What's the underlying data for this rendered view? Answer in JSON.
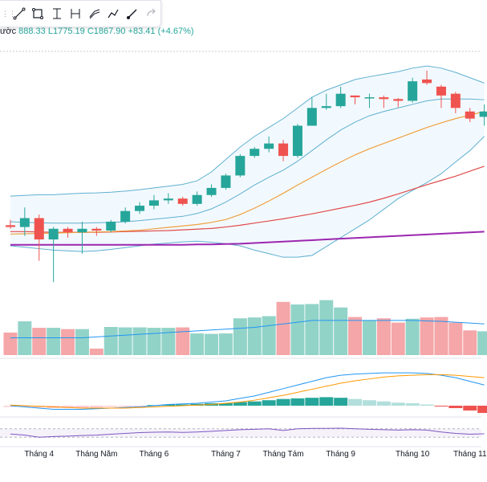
{
  "toolbar": {
    "tools": [
      {
        "name": "trend-line-icon"
      },
      {
        "name": "rectangle-icon"
      },
      {
        "name": "measure-icon"
      },
      {
        "name": "xabcd-pattern-icon"
      },
      {
        "name": "parallel-channel-icon"
      },
      {
        "name": "path-icon"
      },
      {
        "name": "brush-icon"
      },
      {
        "name": "redo-icon"
      }
    ]
  },
  "legend": {
    "cut": "ườc",
    "high": "888.33",
    "low": "L1775.19",
    "close": "C1867.90",
    "change": "+83.41 (+4.67%)"
  },
  "colors": {
    "up": "#26a69a",
    "down": "#ef5350",
    "up_vol": "#92d3c8",
    "down_vol": "#f5a6a8",
    "bb": "#5fb0d0",
    "ma_orange": "#f0a040",
    "ma_red": "#e04b4b",
    "ma_purple": "#9c27b0"
  },
  "chart_data": {
    "type": "candlestick",
    "x_labels": [
      "Tháng 4",
      "Tháng Năm",
      "Tháng 6",
      "Tháng 7",
      "Tháng Tám",
      "Tháng 9",
      "Tháng 10",
      "Tháng 11"
    ],
    "x_label_index": [
      2,
      6,
      10,
      15,
      19,
      23,
      28,
      32
    ],
    "candles": [
      [
        1780,
        1775,
        1795,
        1770
      ],
      [
        1775,
        1800,
        1830,
        1750
      ],
      [
        1800,
        1740,
        1810,
        1680
      ],
      [
        1740,
        1770,
        1775,
        1620
      ],
      [
        1770,
        1760,
        1775,
        1745
      ],
      [
        1760,
        1770,
        1790,
        1700
      ],
      [
        1770,
        1765,
        1775,
        1750
      ],
      [
        1765,
        1790,
        1795,
        1760
      ],
      [
        1790,
        1820,
        1830,
        1785
      ],
      [
        1820,
        1835,
        1845,
        1812
      ],
      [
        1835,
        1850,
        1865,
        1825
      ],
      [
        1850,
        1855,
        1870,
        1840
      ],
      [
        1855,
        1840,
        1860,
        1835
      ],
      [
        1840,
        1865,
        1875,
        1835
      ],
      [
        1865,
        1885,
        1895,
        1860
      ],
      [
        1885,
        1920,
        1925,
        1880
      ],
      [
        1920,
        1975,
        1980,
        1915
      ],
      [
        1975,
        1995,
        2000,
        1970
      ],
      [
        1995,
        2010,
        2030,
        1985
      ],
      [
        2010,
        1975,
        2020,
        1960
      ],
      [
        1975,
        2060,
        2065,
        1970
      ],
      [
        2060,
        2110,
        2140,
        2060
      ],
      [
        2110,
        2115,
        2150,
        2105
      ],
      [
        2115,
        2150,
        2170,
        2110
      ],
      [
        2145,
        2140,
        2145,
        2120
      ],
      [
        2140,
        2140,
        2150,
        2110
      ],
      [
        2140,
        2135,
        2145,
        2110
      ],
      [
        2135,
        2130,
        2138,
        2112
      ],
      [
        2130,
        2185,
        2195,
        2125
      ],
      [
        2190,
        2180,
        2215,
        2175
      ],
      [
        2170,
        2145,
        2175,
        2110
      ],
      [
        2150,
        2110,
        2155,
        2095
      ],
      [
        2100,
        2080,
        2110,
        2070
      ],
      [
        2085,
        2100,
        2120,
        2060
      ]
    ],
    "bollinger_upper": [
      1862,
      1864,
      1866,
      1866,
      1868,
      1870,
      1871,
      1873,
      1876,
      1880,
      1885,
      1890,
      1895,
      1905,
      1930,
      1965,
      2000,
      2030,
      2055,
      2080,
      2110,
      2140,
      2160,
      2175,
      2190,
      2198,
      2205,
      2212,
      2222,
      2228,
      2222,
      2210,
      2195,
      2180
    ],
    "bollinger_mid": [
      1790,
      1788,
      1787,
      1786,
      1786,
      1786,
      1787,
      1788,
      1790,
      1793,
      1797,
      1801,
      1805,
      1813,
      1826,
      1845,
      1868,
      1893,
      1915,
      1935,
      1960,
      1990,
      2020,
      2048,
      2070,
      2088,
      2100,
      2110,
      2120,
      2130,
      2135,
      2135,
      2135,
      2133
    ],
    "bollinger_lower": [
      1722,
      1718,
      1714,
      1710,
      1708,
      1706,
      1708,
      1712,
      1717,
      1722,
      1727,
      1730,
      1733,
      1735,
      1732,
      1728,
      1722,
      1710,
      1700,
      1690,
      1690,
      1695,
      1720,
      1745,
      1770,
      1795,
      1825,
      1855,
      1878,
      1900,
      1925,
      1958,
      1990,
      2030
    ],
    "ma_orange": [
      1755,
      1756,
      1757,
      1758,
      1759,
      1760,
      1761,
      1762,
      1764,
      1766,
      1770,
      1774,
      1778,
      1782,
      1788,
      1796,
      1810,
      1828,
      1848,
      1870,
      1893,
      1915,
      1937,
      1958,
      1978,
      1995,
      2010,
      2025,
      2040,
      2055,
      2068,
      2080,
      2090,
      2100
    ],
    "ma_red": [
      1762,
      1762,
      1761,
      1760,
      1760,
      1760,
      1760,
      1761,
      1762,
      1763,
      1764,
      1765,
      1767,
      1769,
      1771,
      1775,
      1780,
      1786,
      1792,
      1798,
      1805,
      1812,
      1820,
      1828,
      1836,
      1845,
      1856,
      1868,
      1881,
      1894,
      1906,
      1918,
      1932,
      1946
    ],
    "ma_purple": [
      1725,
      1725,
      1725,
      1725,
      1725,
      1725,
      1725,
      1725,
      1725,
      1725,
      1725,
      1725,
      1725,
      1726,
      1726,
      1727,
      1728,
      1730,
      1732,
      1734,
      1736,
      1738,
      1740,
      1742,
      1744,
      1746,
      1748,
      1750,
      1752,
      1754,
      1756,
      1758,
      1760,
      1762
    ],
    "volume": [
      52,
      78,
      63,
      63,
      60,
      60,
      15,
      65,
      64,
      64,
      63,
      63,
      64,
      50,
      49,
      50,
      85,
      87,
      90,
      123,
      117,
      118,
      127,
      110,
      88,
      80,
      85,
      75,
      84,
      87,
      88,
      75,
      57,
      55
    ],
    "volume_avg": [
      40,
      40,
      40,
      40,
      40,
      40,
      42,
      44,
      46,
      48,
      50,
      52,
      54,
      56,
      58,
      60,
      62,
      64,
      68,
      72,
      76,
      80,
      80,
      80,
      80,
      80,
      80,
      80,
      80,
      79,
      78,
      76,
      74,
      72
    ],
    "macd_line": [
      0,
      -2,
      -4,
      -6,
      -6,
      -6,
      -5,
      -4,
      -3,
      -2,
      0,
      2,
      3,
      4,
      6,
      8,
      12,
      16,
      22,
      28,
      34,
      40,
      46,
      50,
      52,
      53,
      54,
      54,
      54,
      53,
      50,
      46,
      40,
      34
    ],
    "macd_signal": [
      1,
      0,
      -1,
      -2,
      -3,
      -4,
      -4,
      -4,
      -4,
      -3,
      -2,
      -1,
      0,
      1,
      2,
      4,
      6,
      9,
      13,
      17,
      22,
      27,
      32,
      37,
      41,
      44,
      47,
      49,
      50,
      51,
      51,
      50,
      48,
      46
    ],
    "macd_hist": [
      -2,
      -2,
      -3,
      -4,
      -4,
      -4,
      -3,
      -2,
      -2,
      -1,
      1,
      2,
      2,
      3,
      4,
      4,
      6,
      7,
      9,
      11,
      12,
      13,
      14,
      13,
      11,
      9,
      7,
      5,
      4,
      2,
      -1,
      -4,
      -8,
      -12
    ],
    "rsi": [
      45,
      40,
      30,
      33,
      35,
      38,
      40,
      44,
      48,
      52,
      54,
      55,
      53,
      55,
      58,
      62,
      66,
      68,
      70,
      62,
      70,
      72,
      72,
      73,
      70,
      68,
      66,
      64,
      66,
      64,
      55,
      48,
      44,
      46
    ],
    "rsi_levels": [
      70,
      30
    ],
    "price_range": [
      1600,
      2260
    ],
    "volume_range": [
      0,
      130
    ],
    "macd_range": [
      -30,
      70
    ],
    "rsi_range": [
      0,
      100
    ]
  }
}
